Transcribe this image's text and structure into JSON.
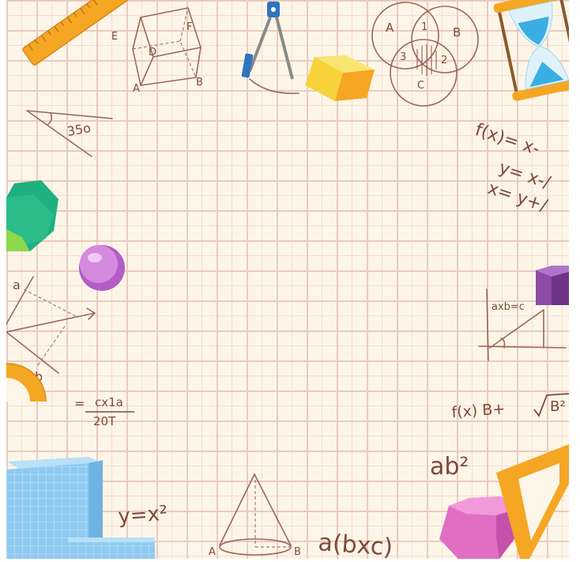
{
  "colors": {
    "paper": "#fdf6e8",
    "grid": "#e9cbc0",
    "ink": "#7d4a3a",
    "ruler": "#f5a623",
    "cube": "#f8d23a",
    "sphere": "#c978d6",
    "dodecahedron": "#1eb07f",
    "hexagonal_prism": "#8e4aa8",
    "pink_prism": "#e06fc4",
    "base_ten_block": "#8fcaf0",
    "hourglass_sand": "#3aaee3"
  },
  "icons": [
    "ruler-icon",
    "compass-icon",
    "hourglass-icon",
    "protractor-icon",
    "set-square-icon"
  ],
  "formulas": {
    "angle": "35o",
    "fx_line1": "f(x)= x-",
    "fx_line2": "y= x-/",
    "fx_line3": "x= y+/",
    "axb": "axb=c",
    "c_eq": "=",
    "c_num": "cx1a",
    "c_den": "20T",
    "root": "f(x) B+",
    "root_arg": "B²",
    "ab2": "ab²",
    "y_x2": "y=x²",
    "abc": "a(bxc)"
  },
  "labels": {
    "cube_vertices": [
      "E",
      "F",
      "D",
      "A",
      "B"
    ],
    "venn": [
      "A",
      "1",
      "B",
      "3",
      "2",
      "C"
    ],
    "vector_a": "a",
    "vector_b": "b",
    "cone_left": "A",
    "cone_right": "B"
  }
}
